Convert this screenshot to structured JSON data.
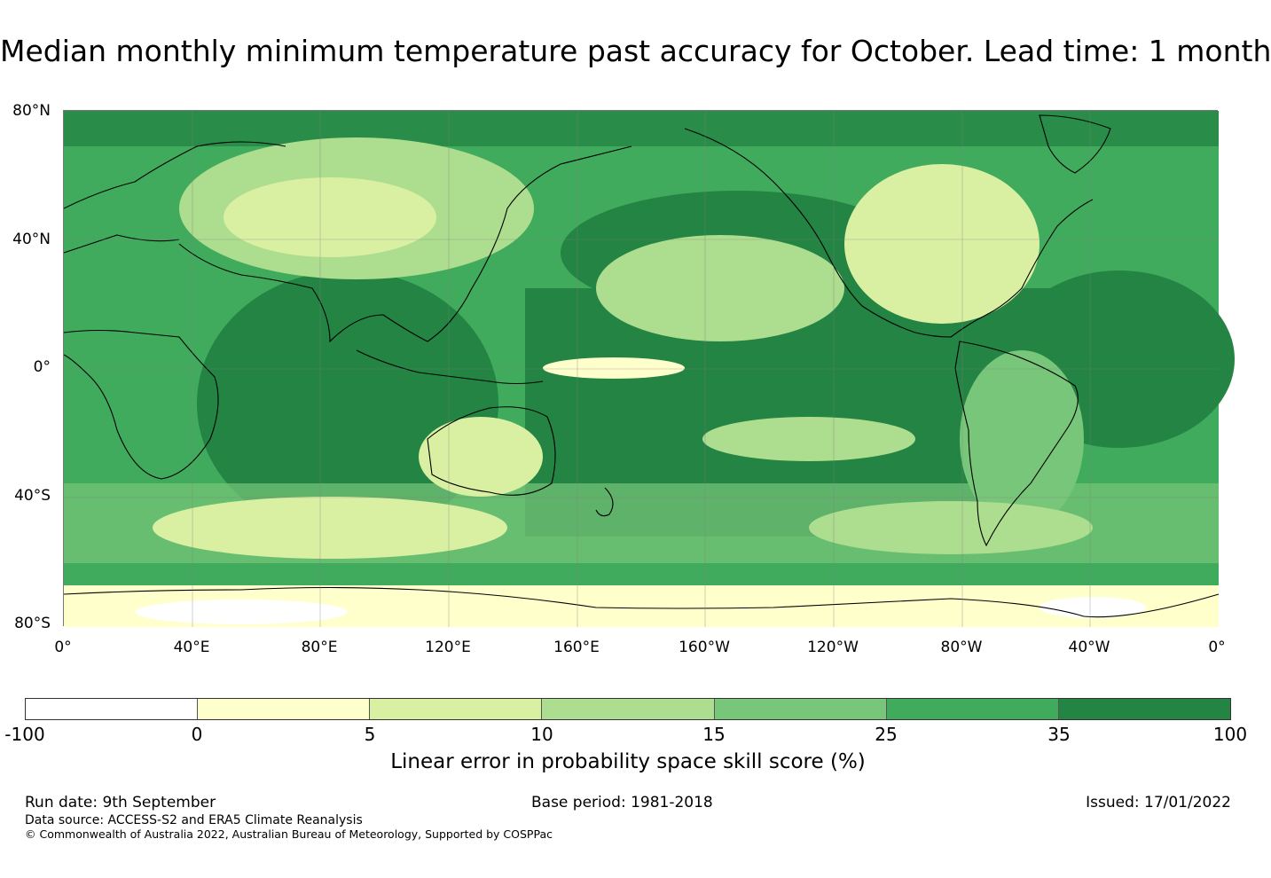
{
  "title": "Median monthly minimum temperature past accuracy for October. Lead time: 1 month",
  "map": {
    "lat_labels": [
      "80°N",
      "40°N",
      "0°",
      "40°S",
      "80°S"
    ],
    "lon_labels": [
      "0°",
      "40°E",
      "80°E",
      "120°E",
      "160°E",
      "160°W",
      "120°W",
      "80°W",
      "40°W",
      "0°"
    ],
    "lat_range": [
      -80,
      80
    ],
    "lon_range": [
      0,
      360
    ],
    "grid": true,
    "coastline_color": "#000000",
    "grid_color": "#808080"
  },
  "colorbar": {
    "ticks": [
      "-100",
      "0",
      "5",
      "10",
      "15",
      "25",
      "35",
      "100"
    ],
    "colors": [
      "#ffffff",
      "#ffffcc",
      "#d9f0a3",
      "#addd8e",
      "#78c679",
      "#41ab5d",
      "#238443"
    ],
    "label": "Linear error in probability space skill score (%)"
  },
  "footer": {
    "run_date": "Run date: 9th September",
    "base_period": "Base period: 1981-2018",
    "issued": "Issued: 17/01/2022",
    "data_source": "Data source: ACCESS-S2 and ERA5 Climate Reanalysis",
    "copyright": "© Commonwealth of Australia 2022, Australian Bureau of Meteorology, Supported by COSPPac"
  }
}
